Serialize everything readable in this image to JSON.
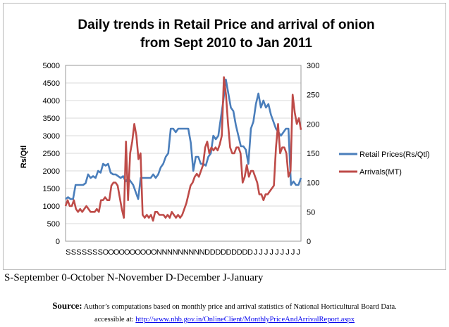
{
  "chart_data": {
    "type": "line",
    "title": [
      "Daily trends in Retail Price and arrival of onion",
      "from Sept 2010 to Jan 2011"
    ],
    "ylabel_left": "Rs/Qtl",
    "ylim_left": [
      0,
      5000
    ],
    "yticks_left": [
      "0",
      "500",
      "1000",
      "1500",
      "2000",
      "2500",
      "3000",
      "3500",
      "4000",
      "4500",
      "5000"
    ],
    "ylim_right": [
      0,
      300
    ],
    "yticks_right": [
      "0",
      "50",
      "100",
      "150",
      "200",
      "250",
      "300"
    ],
    "x_tick_labels": [
      "S",
      "S",
      "S",
      "S",
      "S",
      "S",
      "S",
      "O",
      "O",
      "O",
      "O",
      "O",
      "O",
      "O",
      "O",
      "O",
      "O",
      "N",
      "N",
      "N",
      "N",
      "N",
      "N",
      "N",
      "N",
      "N",
      "D",
      "D",
      "D",
      "D",
      "D",
      "D",
      "D",
      "D",
      "D",
      "J",
      "J",
      "J",
      "J",
      "J",
      "J",
      "J",
      "J",
      "J"
    ],
    "grid": "horizontal",
    "legend_position": "right",
    "series": [
      {
        "name": "Retail Prices(Rs/Qtl)",
        "axis": "left",
        "color": "#4a7ebb",
        "values": [
          1200,
          1250,
          1200,
          1200,
          1600,
          1600,
          1600,
          1600,
          1650,
          1900,
          1800,
          1850,
          1800,
          2000,
          1950,
          2200,
          2150,
          2200,
          1950,
          1900,
          1900,
          1850,
          1800,
          1850,
          1700,
          1800,
          1700,
          1600,
          1400,
          1200,
          1800,
          1800,
          1800,
          1800,
          1800,
          1900,
          1800,
          1900,
          2100,
          2200,
          2400,
          2500,
          3200,
          3200,
          3100,
          3200,
          3200,
          3200,
          3200,
          3200,
          2800,
          2000,
          2400,
          2400,
          2200,
          2200,
          2150,
          2400,
          2500,
          3000,
          2900,
          3000,
          3500,
          4000,
          4600,
          4200,
          3800,
          3700,
          3300,
          3000,
          2700,
          2700,
          2600,
          2200,
          3200,
          3400,
          3900,
          4200,
          3800,
          4000,
          3800,
          3900,
          3600,
          3400,
          3200,
          3100,
          3000,
          3100,
          3200,
          3200,
          1600,
          1700,
          1600,
          1600,
          1800
        ]
      },
      {
        "name": "Arrivals(MT)",
        "axis": "right",
        "color": "#be4b48",
        "values": [
          60,
          70,
          60,
          60,
          70,
          55,
          50,
          55,
          50,
          55,
          60,
          55,
          50,
          50,
          50,
          55,
          50,
          70,
          70,
          75,
          70,
          70,
          95,
          100,
          100,
          95,
          75,
          55,
          40,
          170,
          70,
          150,
          170,
          200,
          180,
          140,
          150,
          45,
          40,
          45,
          40,
          45,
          35,
          50,
          50,
          45,
          45,
          45,
          40,
          45,
          40,
          50,
          45,
          40,
          45,
          40,
          45,
          55,
          65,
          80,
          95,
          100,
          110,
          115,
          110,
          120,
          130,
          160,
          170,
          150,
          160,
          155,
          160,
          155,
          165,
          180,
          280,
          250,
          200,
          160,
          150,
          150,
          160,
          160,
          150,
          100,
          110,
          130,
          110,
          120,
          120,
          110,
          100,
          80,
          80,
          70,
          80,
          80,
          85,
          90,
          95,
          160,
          200,
          150,
          160,
          160,
          150,
          110,
          120,
          250,
          220,
          200,
          210,
          190
        ]
      }
    ]
  },
  "month_key": "S-September 0-October N-November D-December J-January",
  "source": {
    "label": "Source:",
    "text": " Author’s computations based on monthly price and arrival statistics of National Horticultural Board Data.",
    "accessible": "accessible at: ",
    "url": "http://www.nhb.gov.in/OnlineClient/MonthlyPriceAndArrivalReport.aspx"
  },
  "colors": {
    "price": "#4a7ebb",
    "arrivals": "#be4b48",
    "grid": "#d9d9d9"
  }
}
